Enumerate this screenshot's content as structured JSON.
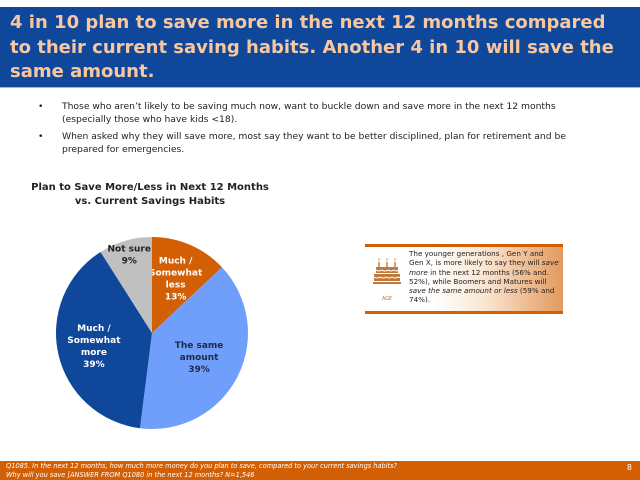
{
  "header": {
    "title": "4 in 10 plan to save more in the next 12 months compared to their current saving habits.  Another 4 in 10 will save the same amount."
  },
  "bullets": [
    "Those who aren’t likely to be saving much now, want to buckle down and save more in the next 12 months (especially those who have kids <18).",
    "When asked why they will save more, most say they want to be better disciplined, plan for retirement and be prepared for emergencies."
  ],
  "bullet_glyph": "•",
  "chart_data": {
    "type": "pie",
    "title": "Plan to Save More/Less in Next 12 Months vs. Current Savings Habits",
    "title_lines": [
      "Plan to Save More/Less in Next 12 Months",
      "vs. Current Savings Habits"
    ],
    "start": "12 o'clock",
    "direction": "clockwise",
    "slices": [
      {
        "label": "Much / Somewhat less",
        "label_lines": [
          "Much /",
          "Somewhat",
          "less",
          "13%"
        ],
        "value": 13,
        "color": "#d35f05",
        "text_color": "#ffffff"
      },
      {
        "label": "The same amount",
        "label_lines": [
          "The same",
          "amount",
          "39%"
        ],
        "value": 39,
        "color": "#6f9ffb",
        "text_color": "#1f2a44"
      },
      {
        "label": "Much / Somewhat more",
        "label_lines": [
          "Much /",
          "Somewhat",
          "more",
          "39%"
        ],
        "value": 39,
        "color": "#0f479b",
        "text_color": "#ffffff"
      },
      {
        "label": "Not sure",
        "label_lines": [
          "Not sure",
          "9%"
        ],
        "value": 9,
        "color": "#c0c0c0",
        "text_color": "#222222"
      }
    ]
  },
  "info_box": {
    "icon": "birthday-cake-icon",
    "icon_label": "AGE",
    "text_parts": [
      {
        "text": "The younger generations , Gen Y and Gen X, is more likely to say they will ",
        "italic": false
      },
      {
        "text": "save more",
        "italic": true
      },
      {
        "text": " in the next 12 months (56% and. 52%), while Boomers and Matures will ",
        "italic": false
      },
      {
        "text": "save the same amount or less",
        "italic": true
      },
      {
        "text": " (59% and 74%).",
        "italic": false
      }
    ]
  },
  "footer": {
    "note_line1": "Q1085. In the next 12 months, how much more money do you plan to save, compared to your current savings habits?",
    "note_line2": "Why will you save [ANSWER FROM Q1080 in the next 12 months?  N=1,546",
    "page_number": "8"
  },
  "colors": {
    "header_bg": "#0f479b",
    "header_text": "#f9c79f",
    "accent_orange": "#d35f05"
  }
}
